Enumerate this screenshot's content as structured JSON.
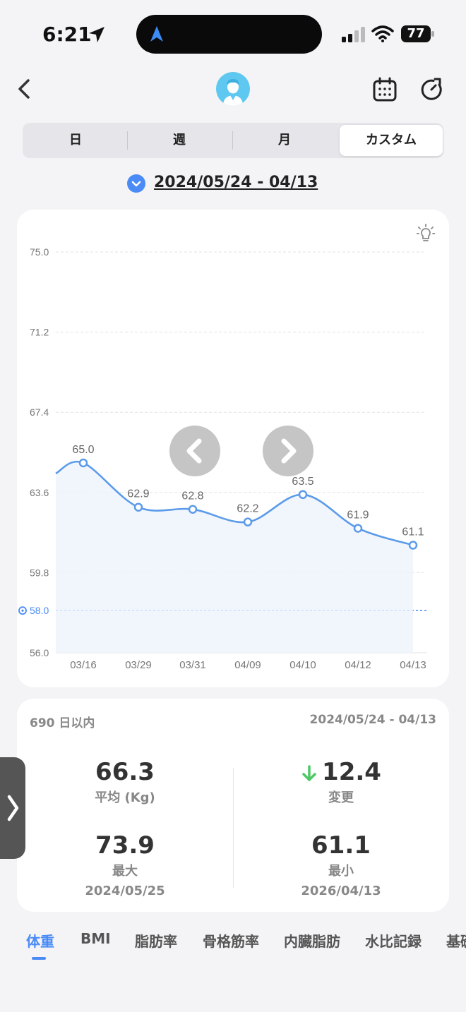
{
  "status_bar": {
    "time": "6:21",
    "battery": "77"
  },
  "segments": [
    "日",
    "週",
    "月",
    "カスタム"
  ],
  "active_segment": 3,
  "date_range": "2024/05/24 - 04/13",
  "chart_data": {
    "type": "line",
    "categories": [
      "03/16",
      "03/29",
      "03/31",
      "04/09",
      "04/10",
      "04/12",
      "04/13"
    ],
    "values": [
      65.0,
      62.9,
      62.8,
      62.2,
      63.5,
      61.9,
      61.1
    ],
    "value_labels": [
      "65.0",
      "62.9",
      "62.8",
      "62.2",
      "63.5",
      "61.9",
      "61.1"
    ],
    "y_ticks": [
      "75.0",
      "71.2",
      "67.4",
      "63.6",
      "59.8",
      "56.0"
    ],
    "ylim": [
      56.0,
      75.0
    ],
    "target": 58.0,
    "target_label": "58.0",
    "grid": true,
    "line_color": "#5b9bea",
    "target_color": "#4a8bf5"
  },
  "stats": {
    "range_label": "690 日以内",
    "range_date": "2024/05/24 - 04/13",
    "average_value": "66.3",
    "average_label": "平均 (Kg)",
    "change_value": "12.4",
    "change_label": "変更",
    "max_value": "73.9",
    "max_label": "最大",
    "max_date": "2024/05/25",
    "min_value": "61.1",
    "min_label": "最小",
    "min_date": "2026/04/13",
    "change_arrow_color": "#4cc864"
  },
  "metric_tabs": [
    "体重",
    "BMI",
    "脂肪率",
    "骨格筋率",
    "内臓脂肪",
    "水比記録",
    "基礎"
  ],
  "active_metric": 0,
  "colors": {
    "accent": "#4a8bf5",
    "avatar": "#5ec8f0"
  }
}
